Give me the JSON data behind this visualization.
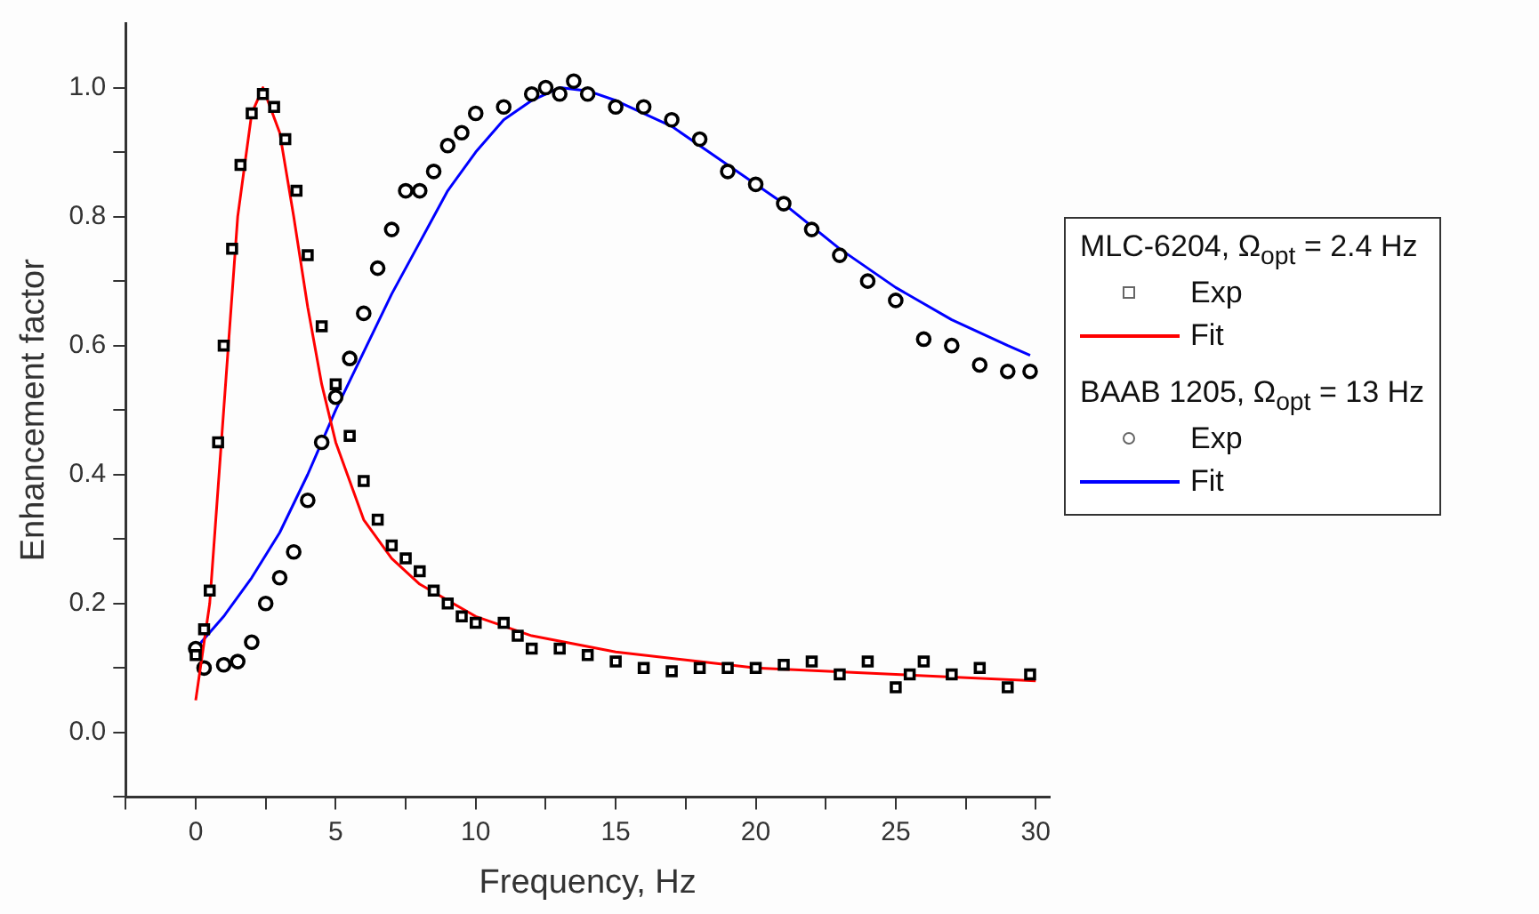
{
  "chart_data": {
    "type": "line",
    "xlabel": "Frequency, Hz",
    "ylabel": "Enhancement factor",
    "xlim": [
      -2.5,
      30.5
    ],
    "ylim": [
      -0.1,
      1.1
    ],
    "xticks": [
      {
        "value": -2.5,
        "label": null
      },
      0,
      {
        "value": 2.5,
        "label": null
      },
      5,
      {
        "value": 7.5,
        "label": null
      },
      10,
      {
        "value": 12.5,
        "label": null
      },
      15,
      {
        "value": 17.5,
        "label": null
      },
      20,
      {
        "value": 22.5,
        "label": null
      },
      25,
      {
        "value": 27.5,
        "label": null
      },
      30
    ],
    "yticks": [
      {
        "value": -0.1,
        "label": null
      },
      {
        "value": 0,
        "label": "0.0"
      },
      {
        "value": 0.1,
        "label": null
      },
      0.2,
      {
        "value": 0.3,
        "label": null
      },
      0.4,
      {
        "value": 0.5,
        "label": null
      },
      0.6,
      {
        "value": 0.7,
        "label": null
      },
      0.8,
      {
        "value": 0.9,
        "label": null
      },
      {
        "value": 1,
        "label": "1.0"
      }
    ],
    "grid": false,
    "legend": "right",
    "annotations": [
      "MLC-6204, Ω$_{opt}$ = 2.4 Hz",
      "BAAB 1205, Ω$_{opt}$ = 13 Hz"
    ],
    "series": [
      {
        "name": "Exp",
        "type": "scatter",
        "marker": "square",
        "color": "#000000",
        "x": [
          0,
          0.3,
          0.5,
          0.8,
          1,
          1.3,
          1.6,
          2,
          2.4,
          2.8,
          3.2,
          3.6,
          4,
          4.5,
          5,
          5.5,
          6,
          6.5,
          7,
          7.5,
          8,
          8.5,
          9,
          9.5,
          10,
          11,
          11.5,
          12,
          13,
          14,
          15,
          16,
          17,
          18,
          19,
          20,
          21,
          22,
          23,
          24,
          25,
          25.5,
          26,
          27,
          28,
          29,
          29.8
        ],
        "values": [
          0.12,
          0.16,
          0.22,
          0.45,
          0.6,
          0.75,
          0.88,
          0.96,
          0.99,
          0.97,
          0.92,
          0.84,
          0.74,
          0.63,
          0.54,
          0.46,
          0.39,
          0.33,
          0.29,
          0.27,
          0.25,
          0.22,
          0.2,
          0.18,
          0.17,
          0.17,
          0.15,
          0.13,
          0.13,
          0.12,
          0.11,
          0.1,
          0.095,
          0.1,
          0.1,
          0.1,
          0.105,
          0.11,
          0.09,
          0.11,
          0.07,
          0.09,
          0.11,
          0.09,
          0.1,
          0.07,
          0.09
        ]
      },
      {
        "name": "Fit",
        "type": "line",
        "marker": "none",
        "color": "#ff0000",
        "x": [
          0,
          0.5,
          1,
          1.5,
          2,
          2.4,
          3,
          3.5,
          4,
          4.5,
          5,
          6,
          7,
          8,
          10,
          12,
          15,
          20,
          25,
          30
        ],
        "values": [
          0.05,
          0.2,
          0.5,
          0.8,
          0.96,
          1,
          0.93,
          0.8,
          0.66,
          0.54,
          0.45,
          0.33,
          0.27,
          0.23,
          0.18,
          0.15,
          0.125,
          0.1,
          0.09,
          0.08
        ]
      },
      {
        "name": "Exp",
        "type": "scatter",
        "marker": "circle",
        "color": "#000000",
        "x": [
          0,
          0.3,
          1,
          1.5,
          2,
          2.5,
          3,
          3.5,
          4,
          4.5,
          5,
          5.5,
          6,
          6.5,
          7,
          7.5,
          8,
          8.5,
          9,
          9.5,
          10,
          11,
          12,
          12.5,
          13,
          13.5,
          14,
          15,
          16,
          17,
          18,
          19,
          20,
          21,
          22,
          23,
          24,
          25,
          26,
          27,
          28,
          29,
          29.8
        ],
        "values": [
          0.13,
          0.1,
          0.105,
          0.11,
          0.14,
          0.2,
          0.24,
          0.28,
          0.36,
          0.45,
          0.52,
          0.58,
          0.65,
          0.72,
          0.78,
          0.84,
          0.84,
          0.87,
          0.91,
          0.93,
          0.96,
          0.97,
          0.99,
          1,
          0.99,
          1.01,
          0.99,
          0.97,
          0.97,
          0.95,
          0.92,
          0.87,
          0.85,
          0.82,
          0.78,
          0.74,
          0.7,
          0.67,
          0.61,
          0.6,
          0.57,
          0.56,
          0.56
        ]
      },
      {
        "name": "Fit",
        "type": "line",
        "marker": "none",
        "color": "#0000ff",
        "x": [
          0,
          1,
          2,
          3,
          4,
          5,
          6,
          7,
          8,
          9,
          10,
          11,
          12,
          13,
          14,
          15,
          17,
          19,
          21,
          23,
          25,
          27,
          29,
          29.8
        ],
        "values": [
          0.13,
          0.18,
          0.24,
          0.31,
          0.4,
          0.5,
          0.59,
          0.68,
          0.76,
          0.84,
          0.9,
          0.95,
          0.98,
          1,
          0.995,
          0.98,
          0.94,
          0.88,
          0.82,
          0.75,
          0.69,
          0.64,
          0.6,
          0.585
        ]
      }
    ]
  }
}
